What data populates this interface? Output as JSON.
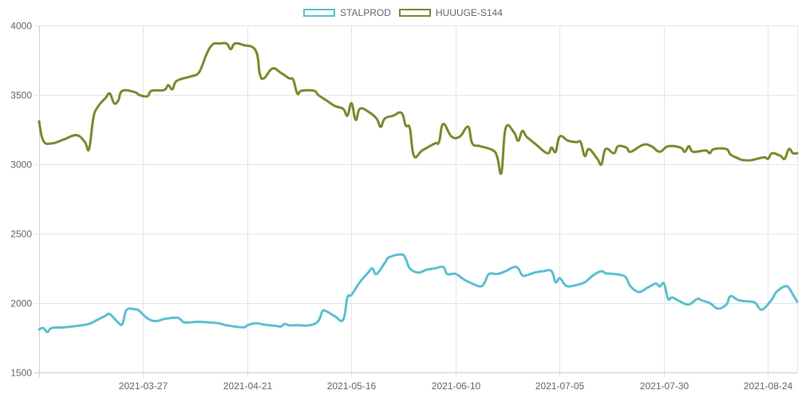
{
  "chart_data": {
    "type": "line",
    "title": "",
    "xlabel": "",
    "ylabel": "",
    "ylim": [
      1500,
      4000
    ],
    "yticks": [
      1500,
      2000,
      2500,
      3000,
      3500,
      4000
    ],
    "xlim": [
      "2021-03-02",
      "2021-08-31"
    ],
    "xticks": [
      "2021-03-27",
      "2021-04-21",
      "2021-05-16",
      "2021-06-10",
      "2021-07-05",
      "2021-07-30",
      "2021-08-24"
    ],
    "grid": true,
    "legend_position": "top-center",
    "series": [
      {
        "name": "STALPROD",
        "color": "#5bc0d0",
        "points": [
          [
            "2021-03-02",
            1810
          ],
          [
            "2021-03-03",
            1820
          ],
          [
            "2021-03-04",
            1790
          ],
          [
            "2021-03-05",
            1820
          ],
          [
            "2021-03-08",
            1825
          ],
          [
            "2021-03-11",
            1835
          ],
          [
            "2021-03-14",
            1850
          ],
          [
            "2021-03-16",
            1880
          ],
          [
            "2021-03-18",
            1910
          ],
          [
            "2021-03-19",
            1920
          ],
          [
            "2021-03-21",
            1860
          ],
          [
            "2021-03-22",
            1850
          ],
          [
            "2021-03-23",
            1950
          ],
          [
            "2021-03-25",
            1955
          ],
          [
            "2021-03-26",
            1945
          ],
          [
            "2021-03-28",
            1890
          ],
          [
            "2021-03-30",
            1870
          ],
          [
            "2021-04-01",
            1885
          ],
          [
            "2021-04-04",
            1895
          ],
          [
            "2021-04-05",
            1880
          ],
          [
            "2021-04-06",
            1860
          ],
          [
            "2021-04-09",
            1865
          ],
          [
            "2021-04-12",
            1860
          ],
          [
            "2021-04-14",
            1855
          ],
          [
            "2021-04-16",
            1840
          ],
          [
            "2021-04-20",
            1825
          ],
          [
            "2021-04-21",
            1840
          ],
          [
            "2021-04-23",
            1855
          ],
          [
            "2021-04-25",
            1845
          ],
          [
            "2021-04-28",
            1835
          ],
          [
            "2021-04-29",
            1830
          ],
          [
            "2021-04-30",
            1850
          ],
          [
            "2021-05-01",
            1840
          ],
          [
            "2021-05-03",
            1840
          ],
          [
            "2021-05-06",
            1840
          ],
          [
            "2021-05-08",
            1870
          ],
          [
            "2021-05-09",
            1940
          ],
          [
            "2021-05-10",
            1940
          ],
          [
            "2021-05-12",
            1905
          ],
          [
            "2021-05-14",
            1880
          ],
          [
            "2021-05-15",
            2040
          ],
          [
            "2021-05-16",
            2060
          ],
          [
            "2021-05-18",
            2150
          ],
          [
            "2021-05-20",
            2220
          ],
          [
            "2021-05-21",
            2250
          ],
          [
            "2021-05-22",
            2210
          ],
          [
            "2021-05-24",
            2290
          ],
          [
            "2021-05-25",
            2330
          ],
          [
            "2021-05-28",
            2350
          ],
          [
            "2021-05-29",
            2320
          ],
          [
            "2021-05-30",
            2250
          ],
          [
            "2021-06-01",
            2220
          ],
          [
            "2021-06-03",
            2240
          ],
          [
            "2021-06-05",
            2250
          ],
          [
            "2021-06-07",
            2260
          ],
          [
            "2021-06-08",
            2210
          ],
          [
            "2021-06-10",
            2210
          ],
          [
            "2021-06-12",
            2170
          ],
          [
            "2021-06-14",
            2140
          ],
          [
            "2021-06-16",
            2120
          ],
          [
            "2021-06-17",
            2150
          ],
          [
            "2021-06-18",
            2210
          ],
          [
            "2021-06-20",
            2210
          ],
          [
            "2021-06-22",
            2230
          ],
          [
            "2021-06-24",
            2260
          ],
          [
            "2021-06-25",
            2250
          ],
          [
            "2021-06-26",
            2200
          ],
          [
            "2021-06-27",
            2200
          ],
          [
            "2021-06-29",
            2220
          ],
          [
            "2021-07-01",
            2230
          ],
          [
            "2021-07-03",
            2230
          ],
          [
            "2021-07-04",
            2150
          ],
          [
            "2021-07-05",
            2180
          ],
          [
            "2021-07-06",
            2140
          ],
          [
            "2021-07-07",
            2120
          ],
          [
            "2021-07-09",
            2130
          ],
          [
            "2021-07-11",
            2150
          ],
          [
            "2021-07-13",
            2200
          ],
          [
            "2021-07-15",
            2230
          ],
          [
            "2021-07-16",
            2215
          ],
          [
            "2021-07-18",
            2210
          ],
          [
            "2021-07-20",
            2200
          ],
          [
            "2021-07-21",
            2180
          ],
          [
            "2021-07-22",
            2120
          ],
          [
            "2021-07-24",
            2080
          ],
          [
            "2021-07-26",
            2110
          ],
          [
            "2021-07-28",
            2140
          ],
          [
            "2021-07-29",
            2120
          ],
          [
            "2021-07-30",
            2140
          ],
          [
            "2021-07-31",
            2030
          ],
          [
            "2021-08-01",
            2040
          ],
          [
            "2021-08-03",
            2010
          ],
          [
            "2021-08-05",
            1990
          ],
          [
            "2021-08-07",
            2030
          ],
          [
            "2021-08-08",
            2020
          ],
          [
            "2021-08-10",
            2000
          ],
          [
            "2021-08-12",
            1960
          ],
          [
            "2021-08-14",
            1990
          ],
          [
            "2021-08-15",
            2050
          ],
          [
            "2021-08-17",
            2020
          ],
          [
            "2021-08-20",
            2010
          ],
          [
            "2021-08-21",
            2000
          ],
          [
            "2021-08-22",
            1960
          ],
          [
            "2021-08-23",
            1960
          ],
          [
            "2021-08-25",
            2030
          ],
          [
            "2021-08-26",
            2080
          ],
          [
            "2021-08-28",
            2120
          ],
          [
            "2021-08-29",
            2110
          ],
          [
            "2021-08-30",
            2060
          ],
          [
            "2021-08-31",
            2010
          ]
        ]
      },
      {
        "name": "HUUUGE-S144",
        "color": "#7a8a2e",
        "points": [
          [
            "2021-03-02",
            3310
          ],
          [
            "2021-03-03",
            3170
          ],
          [
            "2021-03-05",
            3150
          ],
          [
            "2021-03-08",
            3180
          ],
          [
            "2021-03-11",
            3210
          ],
          [
            "2021-03-13",
            3160
          ],
          [
            "2021-03-14",
            3110
          ],
          [
            "2021-03-15",
            3330
          ],
          [
            "2021-03-16",
            3410
          ],
          [
            "2021-03-18",
            3480
          ],
          [
            "2021-03-19",
            3510
          ],
          [
            "2021-03-20",
            3440
          ],
          [
            "2021-03-21",
            3460
          ],
          [
            "2021-03-22",
            3530
          ],
          [
            "2021-03-25",
            3520
          ],
          [
            "2021-03-26",
            3500
          ],
          [
            "2021-03-28",
            3490
          ],
          [
            "2021-03-29",
            3530
          ],
          [
            "2021-04-01",
            3535
          ],
          [
            "2021-04-02",
            3570
          ],
          [
            "2021-04-03",
            3540
          ],
          [
            "2021-04-04",
            3600
          ],
          [
            "2021-04-07",
            3630
          ],
          [
            "2021-04-09",
            3650
          ],
          [
            "2021-04-10",
            3700
          ],
          [
            "2021-04-11",
            3780
          ],
          [
            "2021-04-12",
            3840
          ],
          [
            "2021-04-13",
            3870
          ],
          [
            "2021-04-14",
            3870
          ],
          [
            "2021-04-16",
            3870
          ],
          [
            "2021-04-17",
            3830
          ],
          [
            "2021-04-18",
            3870
          ],
          [
            "2021-04-20",
            3860
          ],
          [
            "2021-04-23",
            3820
          ],
          [
            "2021-04-24",
            3650
          ],
          [
            "2021-04-25",
            3620
          ],
          [
            "2021-04-27",
            3690
          ],
          [
            "2021-04-29",
            3660
          ],
          [
            "2021-05-01",
            3620
          ],
          [
            "2021-05-02",
            3610
          ],
          [
            "2021-05-03",
            3510
          ],
          [
            "2021-05-04",
            3530
          ],
          [
            "2021-05-07",
            3530
          ],
          [
            "2021-05-08",
            3500
          ],
          [
            "2021-05-10",
            3460
          ],
          [
            "2021-05-12",
            3420
          ],
          [
            "2021-05-14",
            3400
          ],
          [
            "2021-05-15",
            3350
          ],
          [
            "2021-05-16",
            3440
          ],
          [
            "2021-05-17",
            3320
          ],
          [
            "2021-05-18",
            3400
          ],
          [
            "2021-05-20",
            3380
          ],
          [
            "2021-05-22",
            3330
          ],
          [
            "2021-05-23",
            3270
          ],
          [
            "2021-05-24",
            3330
          ],
          [
            "2021-05-26",
            3350
          ],
          [
            "2021-05-28",
            3370
          ],
          [
            "2021-05-29",
            3280
          ],
          [
            "2021-05-30",
            3260
          ],
          [
            "2021-05-31",
            3060
          ],
          [
            "2021-06-02",
            3100
          ],
          [
            "2021-06-05",
            3150
          ],
          [
            "2021-06-06",
            3160
          ],
          [
            "2021-06-07",
            3290
          ],
          [
            "2021-06-09",
            3200
          ],
          [
            "2021-06-11",
            3200
          ],
          [
            "2021-06-13",
            3270
          ],
          [
            "2021-06-14",
            3150
          ],
          [
            "2021-06-16",
            3130
          ],
          [
            "2021-06-19",
            3100
          ],
          [
            "2021-06-20",
            3050
          ],
          [
            "2021-06-21",
            2940
          ],
          [
            "2021-06-22",
            3260
          ],
          [
            "2021-06-24",
            3230
          ],
          [
            "2021-06-25",
            3170
          ],
          [
            "2021-06-26",
            3240
          ],
          [
            "2021-06-27",
            3200
          ],
          [
            "2021-06-29",
            3150
          ],
          [
            "2021-07-02",
            3080
          ],
          [
            "2021-07-03",
            3120
          ],
          [
            "2021-07-04",
            3090
          ],
          [
            "2021-07-05",
            3200
          ],
          [
            "2021-07-07",
            3170
          ],
          [
            "2021-07-09",
            3160
          ],
          [
            "2021-07-10",
            3160
          ],
          [
            "2021-07-11",
            3060
          ],
          [
            "2021-07-12",
            3110
          ],
          [
            "2021-07-14",
            3040
          ],
          [
            "2021-07-15",
            3000
          ],
          [
            "2021-07-16",
            3110
          ],
          [
            "2021-07-18",
            3080
          ],
          [
            "2021-07-19",
            3130
          ],
          [
            "2021-07-21",
            3120
          ],
          [
            "2021-07-22",
            3090
          ],
          [
            "2021-07-25",
            3140
          ],
          [
            "2021-07-27",
            3130
          ],
          [
            "2021-07-29",
            3090
          ],
          [
            "2021-07-31",
            3130
          ],
          [
            "2021-08-03",
            3120
          ],
          [
            "2021-08-04",
            3090
          ],
          [
            "2021-08-05",
            3130
          ],
          [
            "2021-08-06",
            3090
          ],
          [
            "2021-08-09",
            3100
          ],
          [
            "2021-08-10",
            3080
          ],
          [
            "2021-08-11",
            3110
          ],
          [
            "2021-08-14",
            3110
          ],
          [
            "2021-08-15",
            3070
          ],
          [
            "2021-08-17",
            3040
          ],
          [
            "2021-08-18",
            3030
          ],
          [
            "2021-08-20",
            3030
          ],
          [
            "2021-08-23",
            3050
          ],
          [
            "2021-08-24",
            3040
          ],
          [
            "2021-08-25",
            3080
          ],
          [
            "2021-08-27",
            3060
          ],
          [
            "2021-08-28",
            3040
          ],
          [
            "2021-08-29",
            3110
          ],
          [
            "2021-08-30",
            3080
          ],
          [
            "2021-08-31",
            3080
          ]
        ]
      }
    ]
  }
}
